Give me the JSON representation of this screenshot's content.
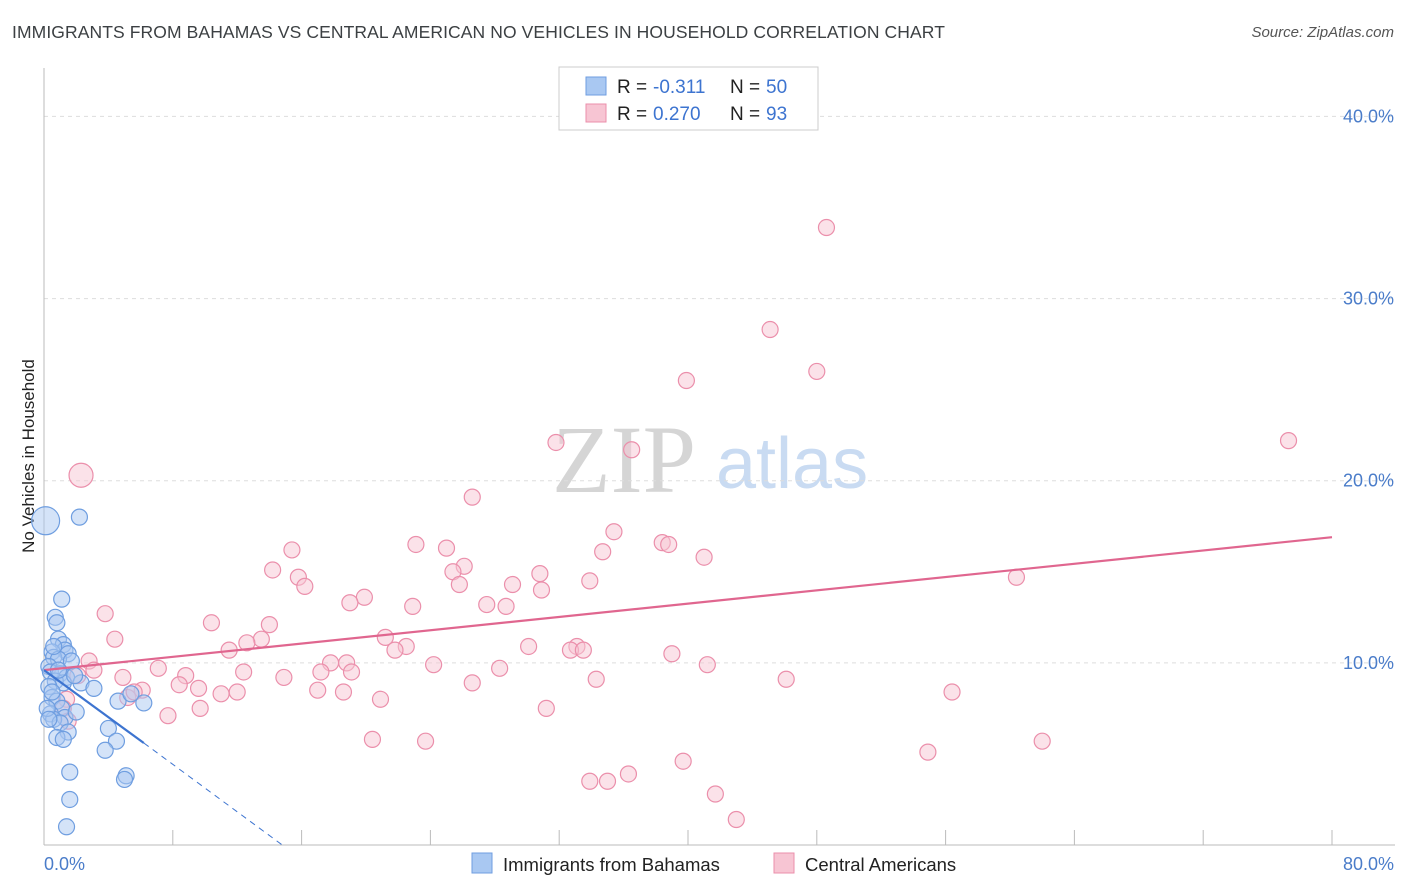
{
  "title": "IMMIGRANTS FROM BAHAMAS VS CENTRAL AMERICAN NO VEHICLES IN HOUSEHOLD CORRELATION CHART",
  "source": "Source: ZipAtlas.com",
  "watermark": {
    "zip": "ZIP",
    "atlas": "atlas"
  },
  "legend": {
    "r_label": "R =",
    "n_label": "N =",
    "entries": [
      {
        "r": "-0.311",
        "n": "50",
        "color": "#a9c8f2",
        "stroke": "#6f9ee0"
      },
      {
        "r": "0.270",
        "n": "93",
        "color": "#f7c5d3",
        "stroke": "#eb8fab"
      }
    ]
  },
  "bottom_legend": [
    {
      "label": "Immigrants from Bahamas",
      "color": "#a9c8f2",
      "stroke": "#6f9ee0"
    },
    {
      "label": "Central Americans",
      "color": "#f7c5d3",
      "stroke": "#eb8fab"
    }
  ],
  "chart_data": {
    "type": "scatter",
    "title": "IMMIGRANTS FROM BAHAMAS VS CENTRAL AMERICAN NO VEHICLES IN HOUSEHOLD CORRELATION CHART",
    "xlabel": "",
    "ylabel": "No Vehicles in Household",
    "xlim": [
      0,
      80
    ],
    "ylim": [
      0,
      42
    ],
    "x_tick_labels": [
      "0.0%",
      "80.0%"
    ],
    "y_ticks": [
      10,
      20,
      30,
      40
    ],
    "y_tick_labels": [
      "10.0%",
      "20.0%",
      "30.0%",
      "40.0%"
    ],
    "grid": true,
    "legend_position": "top-center",
    "series": [
      {
        "name": "Immigrants from Bahamas",
        "color": "#a9c8f2",
        "stroke": "#6f9ee0",
        "trend": {
          "x": [
            0.0,
            6.2
          ],
          "y": [
            9.6,
            5.6
          ],
          "color": "#3d74d0",
          "dash_to": [
            14.8,
            0.0
          ]
        },
        "points": [
          [
            0.1,
            17.8,
            14
          ],
          [
            2.2,
            18.0,
            8
          ],
          [
            1.1,
            13.5,
            8
          ],
          [
            0.7,
            12.5,
            8
          ],
          [
            0.8,
            12.2,
            8
          ],
          [
            0.9,
            11.3,
            8
          ],
          [
            1.2,
            11.0,
            8
          ],
          [
            1.3,
            10.7,
            8
          ],
          [
            0.5,
            10.6,
            8
          ],
          [
            1.5,
            10.5,
            8
          ],
          [
            0.6,
            10.3,
            8
          ],
          [
            0.9,
            10.2,
            8
          ],
          [
            0.3,
            9.8,
            8
          ],
          [
            0.4,
            9.5,
            8
          ],
          [
            1.0,
            9.4,
            8
          ],
          [
            1.4,
            9.2,
            8
          ],
          [
            0.7,
            9.0,
            8
          ],
          [
            1.2,
            8.9,
            8
          ],
          [
            2.3,
            8.9,
            8
          ],
          [
            0.3,
            8.7,
            8
          ],
          [
            3.1,
            8.6,
            8
          ],
          [
            0.5,
            8.1,
            8
          ],
          [
            0.8,
            7.9,
            8
          ],
          [
            4.6,
            7.9,
            8
          ],
          [
            6.2,
            7.8,
            8
          ],
          [
            1.1,
            7.5,
            8
          ],
          [
            0.4,
            7.2,
            8
          ],
          [
            1.3,
            7.0,
            8
          ],
          [
            0.6,
            6.9,
            8
          ],
          [
            1.0,
            6.7,
            8
          ],
          [
            4.0,
            6.4,
            8
          ],
          [
            1.5,
            6.2,
            8
          ],
          [
            0.8,
            5.9,
            8
          ],
          [
            1.2,
            5.8,
            8
          ],
          [
            4.5,
            5.7,
            8
          ],
          [
            3.8,
            5.2,
            8
          ],
          [
            1.6,
            4.0,
            8
          ],
          [
            5.1,
            3.8,
            8
          ],
          [
            5.0,
            3.6,
            8
          ],
          [
            1.6,
            2.5,
            8
          ],
          [
            1.4,
            1.0,
            8
          ],
          [
            0.9,
            9.6,
            8
          ],
          [
            1.7,
            10.1,
            8
          ],
          [
            0.2,
            7.5,
            8
          ],
          [
            2.0,
            7.3,
            8
          ],
          [
            0.5,
            8.4,
            8
          ],
          [
            5.4,
            8.3,
            8
          ],
          [
            0.6,
            10.9,
            8
          ],
          [
            1.9,
            9.3,
            8
          ],
          [
            0.3,
            6.9,
            8
          ]
        ]
      },
      {
        "name": "Central Americans",
        "color": "#f7c5d3",
        "stroke": "#eb8fab",
        "trend": {
          "x": [
            0.0,
            80.0
          ],
          "y": [
            9.6,
            16.9
          ],
          "color": "#e0668f"
        },
        "points": [
          [
            48.6,
            33.9,
            8
          ],
          [
            45.1,
            28.3,
            8
          ],
          [
            48.0,
            26.0,
            8
          ],
          [
            39.9,
            25.5,
            8
          ],
          [
            77.3,
            22.2,
            8
          ],
          [
            31.8,
            22.1,
            8
          ],
          [
            36.5,
            21.7,
            8
          ],
          [
            2.3,
            20.3,
            12
          ],
          [
            26.6,
            19.1,
            8
          ],
          [
            35.4,
            17.2,
            8
          ],
          [
            38.4,
            16.6,
            8
          ],
          [
            38.8,
            16.5,
            8
          ],
          [
            23.1,
            16.5,
            8
          ],
          [
            25.0,
            16.3,
            8
          ],
          [
            15.4,
            16.2,
            8
          ],
          [
            34.7,
            16.1,
            8
          ],
          [
            41.0,
            15.8,
            8
          ],
          [
            26.1,
            15.3,
            8
          ],
          [
            14.2,
            15.1,
            8
          ],
          [
            25.4,
            15.0,
            8
          ],
          [
            30.8,
            14.9,
            8
          ],
          [
            15.8,
            14.7,
            8
          ],
          [
            33.9,
            14.5,
            8
          ],
          [
            60.4,
            14.7,
            8
          ],
          [
            16.2,
            14.2,
            8
          ],
          [
            25.8,
            14.3,
            8
          ],
          [
            29.1,
            14.3,
            8
          ],
          [
            30.9,
            14.0,
            8
          ],
          [
            19.9,
            13.6,
            8
          ],
          [
            19.0,
            13.3,
            8
          ],
          [
            27.5,
            13.2,
            8
          ],
          [
            28.7,
            13.1,
            8
          ],
          [
            22.9,
            13.1,
            8
          ],
          [
            3.8,
            12.7,
            8
          ],
          [
            10.4,
            12.2,
            8
          ],
          [
            14.0,
            12.1,
            8
          ],
          [
            4.4,
            11.3,
            8
          ],
          [
            21.2,
            11.4,
            8
          ],
          [
            13.5,
            11.3,
            8
          ],
          [
            12.6,
            11.1,
            8
          ],
          [
            22.5,
            10.9,
            8
          ],
          [
            30.1,
            10.9,
            8
          ],
          [
            33.1,
            10.9,
            8
          ],
          [
            21.8,
            10.7,
            8
          ],
          [
            32.7,
            10.7,
            8
          ],
          [
            33.5,
            10.7,
            8
          ],
          [
            11.5,
            10.7,
            8
          ],
          [
            39.0,
            10.5,
            8
          ],
          [
            2.8,
            10.1,
            8
          ],
          [
            17.8,
            10.0,
            8
          ],
          [
            18.8,
            10.0,
            8
          ],
          [
            24.2,
            9.9,
            8
          ],
          [
            41.2,
            9.9,
            8
          ],
          [
            7.1,
            9.7,
            8
          ],
          [
            28.3,
            9.7,
            8
          ],
          [
            12.4,
            9.5,
            8
          ],
          [
            17.2,
            9.5,
            8
          ],
          [
            19.1,
            9.5,
            8
          ],
          [
            8.8,
            9.3,
            8
          ],
          [
            2.1,
            9.3,
            8
          ],
          [
            4.9,
            9.2,
            8
          ],
          [
            14.9,
            9.2,
            8
          ],
          [
            34.3,
            9.1,
            8
          ],
          [
            46.1,
            9.1,
            8
          ],
          [
            26.6,
            8.9,
            8
          ],
          [
            8.4,
            8.8,
            8
          ],
          [
            9.6,
            8.6,
            8
          ],
          [
            6.1,
            8.5,
            8
          ],
          [
            17.0,
            8.5,
            8
          ],
          [
            18.6,
            8.4,
            8
          ],
          [
            12.0,
            8.4,
            8
          ],
          [
            56.4,
            8.4,
            8
          ],
          [
            11.0,
            8.3,
            8
          ],
          [
            5.2,
            8.1,
            8
          ],
          [
            1.4,
            8.0,
            8
          ],
          [
            20.9,
            8.0,
            8
          ],
          [
            9.7,
            7.5,
            8
          ],
          [
            31.2,
            7.5,
            8
          ],
          [
            1.2,
            7.5,
            8
          ],
          [
            7.7,
            7.1,
            8
          ],
          [
            1.5,
            6.8,
            8
          ],
          [
            20.4,
            5.8,
            8
          ],
          [
            23.7,
            5.7,
            8
          ],
          [
            62.0,
            5.7,
            8
          ],
          [
            54.9,
            5.1,
            8
          ],
          [
            39.7,
            4.6,
            8
          ],
          [
            36.3,
            3.9,
            8
          ],
          [
            35.0,
            3.5,
            8
          ],
          [
            33.9,
            3.5,
            8
          ],
          [
            41.7,
            2.8,
            8
          ],
          [
            43.0,
            1.4,
            8
          ],
          [
            3.1,
            9.6,
            8
          ],
          [
            5.6,
            8.4,
            8
          ]
        ]
      }
    ]
  }
}
